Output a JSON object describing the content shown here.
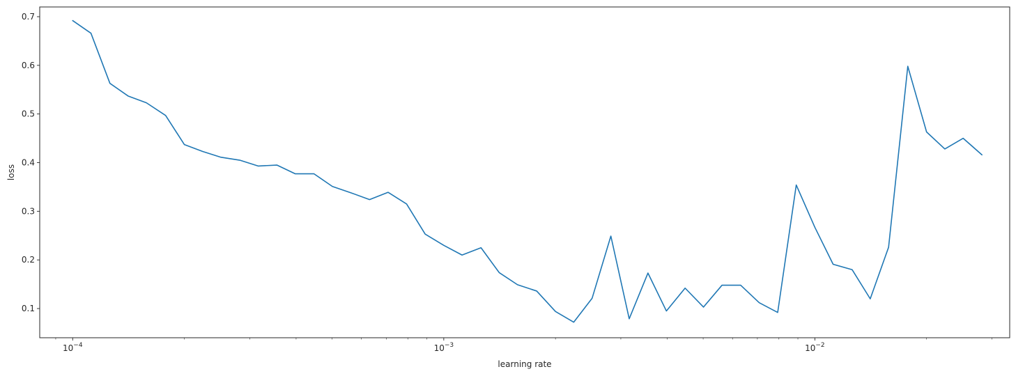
{
  "chart_data": {
    "type": "line",
    "title": "",
    "xlabel": "learning rate",
    "ylabel": "loss",
    "xscale": "log",
    "xlim": [
      8.15e-05,
      0.0335
    ],
    "ylim": [
      0.04,
      0.72
    ],
    "grid": false,
    "line_color": "#1f77b4",
    "x_ticks": [
      {
        "value": 0.0001,
        "base": "10",
        "exp": "−4"
      },
      {
        "value": 0.001,
        "base": "10",
        "exp": "−3"
      },
      {
        "value": 0.01,
        "base": "10",
        "exp": "−2"
      }
    ],
    "y_ticks": [
      {
        "value": 0.1,
        "label": "0.1"
      },
      {
        "value": 0.2,
        "label": "0.2"
      },
      {
        "value": 0.3,
        "label": "0.3"
      },
      {
        "value": 0.4,
        "label": "0.4"
      },
      {
        "value": 0.5,
        "label": "0.5"
      },
      {
        "value": 0.6,
        "label": "0.6"
      },
      {
        "value": 0.7,
        "label": "0.7"
      }
    ],
    "x": [
      0.0001,
      0.000112,
      0.000126,
      0.000141,
      0.000158,
      0.000178,
      0.0002,
      0.000224,
      0.000251,
      0.000282,
      0.000316,
      0.000355,
      0.000398,
      0.000447,
      0.000501,
      0.000562,
      0.000631,
      0.000708,
      0.000794,
      0.000891,
      0.001,
      0.00112,
      0.00126,
      0.00141,
      0.00158,
      0.00178,
      0.002,
      0.00224,
      0.00251,
      0.00282,
      0.00316,
      0.00355,
      0.00398,
      0.00447,
      0.00501,
      0.00562,
      0.00631,
      0.00708,
      0.00794,
      0.00891,
      0.01,
      0.0112,
      0.0126,
      0.0141,
      0.0158,
      0.0178,
      0.02,
      0.0224,
      0.0251,
      0.0282
    ],
    "y": [
      0.692,
      0.666,
      0.563,
      0.537,
      0.523,
      0.497,
      0.437,
      0.423,
      0.411,
      0.405,
      0.393,
      0.395,
      0.377,
      0.377,
      0.351,
      0.338,
      0.324,
      0.339,
      0.315,
      0.253,
      0.23,
      0.21,
      0.225,
      0.174,
      0.149,
      0.136,
      0.094,
      0.072,
      0.121,
      0.249,
      0.079,
      0.173,
      0.095,
      0.142,
      0.103,
      0.148,
      0.148,
      0.112,
      0.092,
      0.354,
      0.267,
      0.191,
      0.18,
      0.12,
      0.226,
      0.598,
      0.463,
      0.428,
      0.45,
      0.416
    ]
  }
}
